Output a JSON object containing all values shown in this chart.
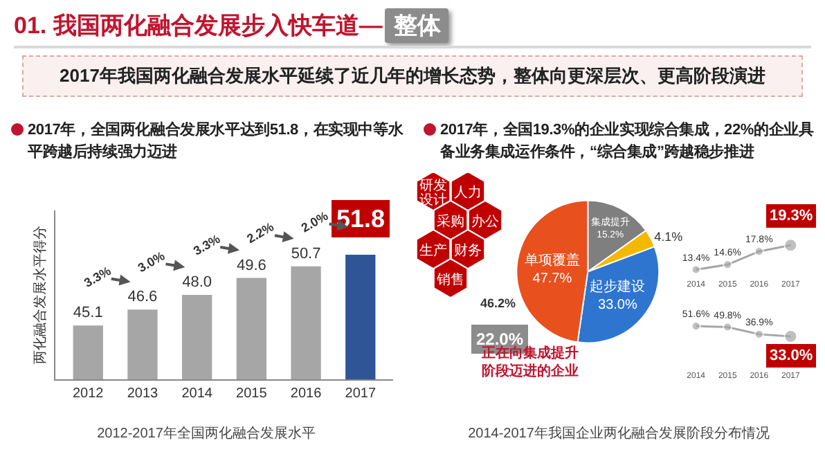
{
  "chart_data": [
    {
      "type": "bar",
      "title": "2012-2017年全国两化融合发展水平",
      "subtitle": "2017年，全国两化融合发展水平达到51.8，在实现中等水平跨越后持续强力迈进",
      "ylabel": "两化融合发展水平得分",
      "categories": [
        "2012",
        "2013",
        "2014",
        "2015",
        "2016",
        "2017"
      ],
      "values": [
        45.1,
        46.6,
        48.0,
        49.6,
        50.7,
        51.8
      ],
      "value_labels": [
        "45.1",
        "46.6",
        "48.0",
        "49.6",
        "50.7",
        "51.8"
      ],
      "colors": [
        "#a6a6a6",
        "#a6a6a6",
        "#a6a6a6",
        "#a6a6a6",
        "#a6a6a6",
        "#2f5597"
      ],
      "ylim": [
        40,
        56
      ],
      "tick_labels": "x",
      "annotations": [
        "01. 我国两化融合发展步入快车道—",
        "整体",
        "2017年我国两化融合发展水平延续了近几年的增长态势，整体向更深层次、更高阶段演进",
        {
          "text": "3.3%",
          "x": "2013",
          "y": 46.6
        },
        {
          "text": "3.0%",
          "x": "2014",
          "y": 48.0
        },
        {
          "text": "3.3%",
          "x": "2015",
          "y": 49.6
        },
        {
          "text": "2.2%",
          "x": "2016",
          "y": 50.7
        },
        {
          "text": "2.0%",
          "x": "2017",
          "y": 51.8
        }
      ]
    },
    {
      "type": "pie",
      "title": "2014-2017年我国企业两化融合发展阶段分布情况",
      "subtitle": "2017年，全国19.3%的企业实现综合集成，22%的企业具备业务集成运作条件，“综合集成”跨越稳步推进",
      "categories": [
        "集成提升",
        null,
        "起步建设",
        "单项覆盖"
      ],
      "values": [
        15.2,
        4.1,
        33.0,
        47.7
      ],
      "value_labels": [
        "15.2%",
        "4.1%",
        "33.0%",
        "47.7%"
      ],
      "colors": [
        "#7f7f7f",
        "#f5b800",
        "#2e75d0",
        "#e8501e"
      ],
      "annotations": [
        "研发设计",
        "人力",
        "采购",
        "办公",
        "生产",
        "财务",
        "销售",
        "46.2%",
        "22.0%",
        "正在向集成提升阶段迈进的企业"
      ]
    },
    {
      "type": "line",
      "categories": [
        "2014",
        "2015",
        "2016",
        "2017"
      ],
      "values": [
        13.4,
        14.6,
        17.8,
        19.3
      ],
      "value_labels": [
        "13.4%",
        "14.6%",
        "17.8%",
        "19.3%"
      ],
      "color": "#a6a6a6",
      "marker": "circle",
      "tick_labels": "x"
    },
    {
      "type": "line",
      "categories": [
        "2014",
        "2015",
        "2016",
        "2017"
      ],
      "values": [
        51.6,
        49.8,
        36.9,
        33.0
      ],
      "value_labels": [
        "51.6%",
        "49.8%",
        "36.9%",
        "33.0%"
      ],
      "color": "#a6a6a6",
      "marker": "circle",
      "tick_labels": "x"
    }
  ]
}
